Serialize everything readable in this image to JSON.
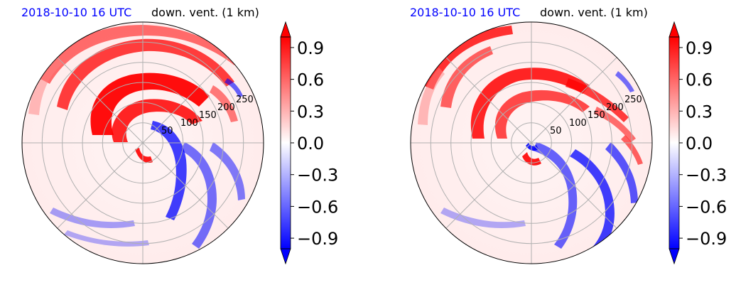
{
  "chart_data": [
    {
      "type": "heatmap",
      "projection": "polar",
      "title_left": "2018-10-10 16 UTC",
      "title_right": "down. vent. (1 km)",
      "radial_tick_labels": [
        "50",
        "100",
        "150",
        "200",
        "250"
      ],
      "radial_ticks": [
        50,
        100,
        150,
        200,
        250
      ],
      "rlim": [
        0,
        300
      ],
      "grid": true,
      "colorbar": {
        "colormap": "bwr",
        "vmin": -1.0,
        "vmax": 1.0,
        "extend": "both",
        "tick_values": [
          0.9,
          0.6,
          0.3,
          0.0,
          -0.3,
          -0.6,
          -0.9
        ],
        "tick_labels": [
          "0.9",
          "0.6",
          "0.3",
          "0.0",
          "−0.3",
          "−0.6",
          "−0.9"
        ]
      }
    },
    {
      "type": "heatmap",
      "projection": "polar",
      "title_left": "2018-10-10 16 UTC",
      "title_right": "down. vent. (1 km)",
      "radial_tick_labels": [
        "50",
        "100",
        "150",
        "200",
        "250"
      ],
      "radial_ticks": [
        50,
        100,
        150,
        200,
        250
      ],
      "rlim": [
        0,
        300
      ],
      "grid": true,
      "colorbar": {
        "colormap": "bwr",
        "vmin": -1.0,
        "vmax": 1.0,
        "extend": "both",
        "tick_values": [
          0.9,
          0.6,
          0.3,
          0.0,
          -0.3,
          -0.6,
          -0.9
        ],
        "tick_labels": [
          "0.9",
          "0.6",
          "0.3",
          "0.0",
          "−0.3",
          "−0.6",
          "−0.9"
        ]
      }
    }
  ]
}
